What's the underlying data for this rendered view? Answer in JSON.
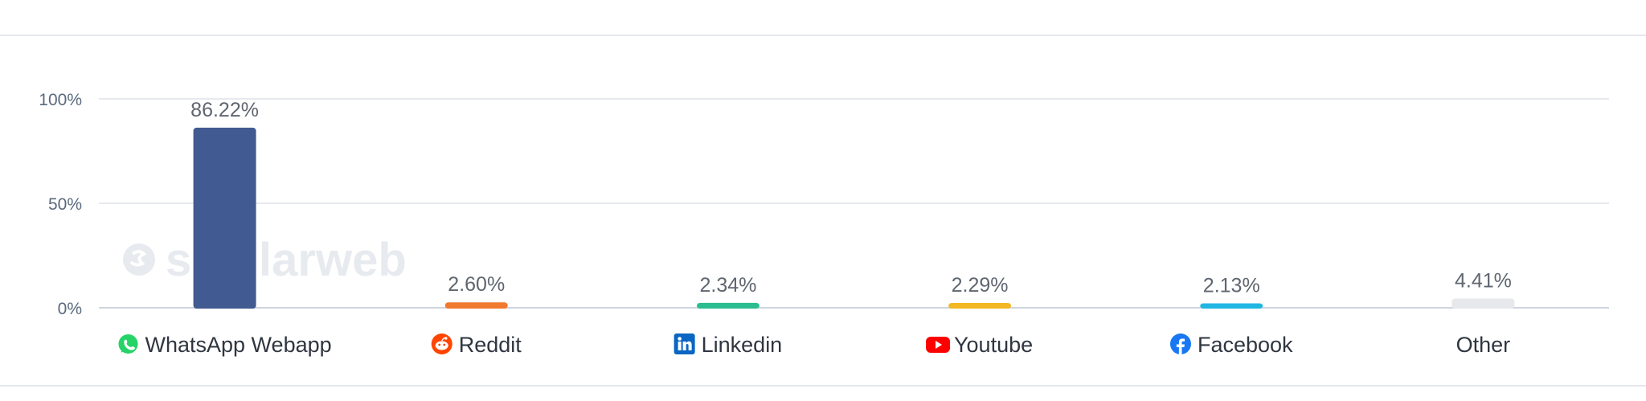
{
  "watermark": "similarweb",
  "chart_data": {
    "type": "bar",
    "categories": [
      "WhatsApp Webapp",
      "Reddit",
      "Linkedin",
      "Youtube",
      "Facebook",
      "Other"
    ],
    "values": [
      86.22,
      2.6,
      2.34,
      2.29,
      2.13,
      4.41
    ],
    "value_labels": [
      "86.22%",
      "2.60%",
      "2.34%",
      "2.29%",
      "2.13%",
      "4.41%"
    ],
    "colors": [
      "#415a91",
      "#f07a2e",
      "#2bbd8f",
      "#f2b824",
      "#22b7e3",
      "#e6e8eb"
    ],
    "icons": [
      "whatsapp-icon",
      "reddit-icon",
      "linkedin-icon",
      "youtube-icon",
      "facebook-icon",
      ""
    ],
    "ylim": [
      0,
      100
    ],
    "yticks": [
      "0%",
      "50%",
      "100%"
    ],
    "ytick_values": [
      0,
      50,
      100
    ],
    "grid": true,
    "title": "",
    "xlabel": "",
    "ylabel": ""
  }
}
